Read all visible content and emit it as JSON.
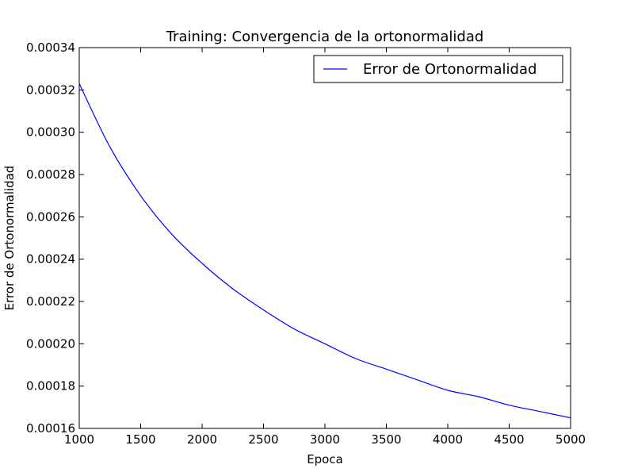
{
  "chart_data": {
    "type": "line",
    "title": "Training: Convergencia de la ortonormalidad",
    "xlabel": "Epoca",
    "ylabel": "Error de Ortonormalidad",
    "xlim": [
      1000,
      5000
    ],
    "ylim": [
      0.00016,
      0.00034
    ],
    "x_ticks": [
      "1000",
      "1500",
      "2000",
      "2500",
      "3000",
      "3500",
      "4000",
      "4500",
      "5000"
    ],
    "y_ticks": [
      "0.00016",
      "0.00018",
      "0.00020",
      "0.00022",
      "0.00024",
      "0.00026",
      "0.00028",
      "0.00030",
      "0.00032",
      "0.00034"
    ],
    "grid": false,
    "legend_position": "top-right",
    "series": [
      {
        "name": "Error de Ortonormalidad",
        "color": "#0000ff",
        "x": [
          1000,
          1250,
          1500,
          1750,
          2000,
          2250,
          2500,
          2750,
          3000,
          3250,
          3500,
          3750,
          4000,
          4250,
          4500,
          4750,
          5000
        ],
        "y": [
          0.000323,
          0.000293,
          0.00027,
          0.000252,
          0.000238,
          0.000226,
          0.000216,
          0.000207,
          0.0002,
          0.000193,
          0.000188,
          0.000183,
          0.000178,
          0.000175,
          0.000171,
          0.000168,
          0.000165
        ]
      }
    ]
  }
}
